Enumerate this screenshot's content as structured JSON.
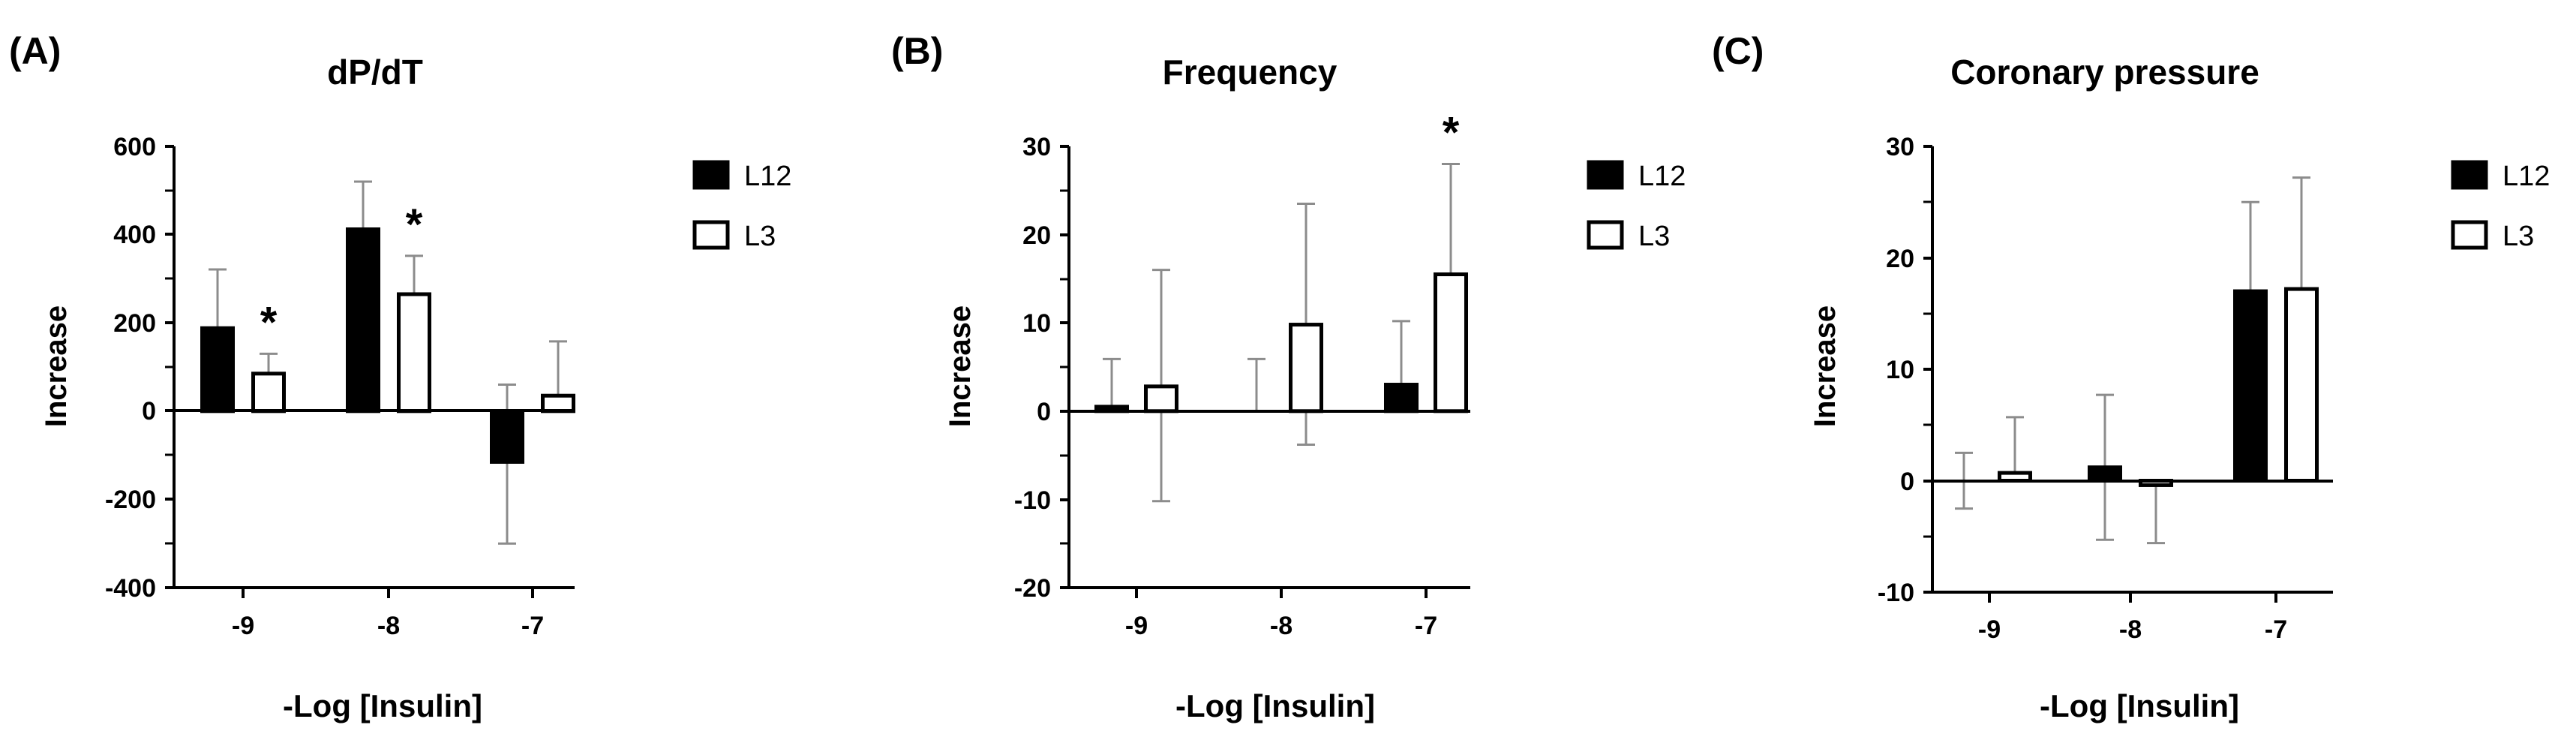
{
  "chart_data": [
    {
      "type": "bar",
      "panel_label": "(A)",
      "title": "dP/dT",
      "xlabel": "-Log [Insulin]",
      "ylabel": "Increase",
      "categories": [
        "-9",
        "-8",
        "-7"
      ],
      "ylim": [
        -400,
        600
      ],
      "yticks": [
        "600",
        "400",
        "200",
        "0",
        "-200",
        "-400"
      ],
      "grid": false,
      "legend_position": "top-right",
      "series": [
        {
          "name": "L12",
          "fill": "black",
          "values": [
            188,
            412,
            -115
          ],
          "err_plus": [
            133,
            108,
            175
          ],
          "err_minus": [
            0,
            0,
            185
          ]
        },
        {
          "name": "L3",
          "fill": "white",
          "values": [
            85,
            265,
            35
          ],
          "err_plus": [
            45,
            87,
            123
          ],
          "err_minus": [
            0,
            0,
            0
          ]
        }
      ],
      "annotations": [
        {
          "text": "*",
          "category": "-9",
          "series": "L3"
        },
        {
          "text": "*",
          "category": "-8",
          "series": "L3"
        }
      ]
    },
    {
      "type": "bar",
      "panel_label": "(B)",
      "title": "Frequency",
      "xlabel": "-Log [Insulin]",
      "ylabel": "Increase",
      "categories": [
        "-9",
        "-8",
        "-7"
      ],
      "ylim": [
        -20,
        30
      ],
      "yticks": [
        "30",
        "20",
        "10",
        "0",
        "-10",
        "-20"
      ],
      "grid": false,
      "legend_position": "top-right",
      "series": [
        {
          "name": "L12",
          "fill": "black",
          "values": [
            0.5,
            0,
            3
          ],
          "err_plus": [
            5.4,
            5.9,
            7.2
          ],
          "err_minus": [
            0,
            0,
            0
          ]
        },
        {
          "name": "L3",
          "fill": "white",
          "values": [
            2.8,
            9.8,
            15.5
          ],
          "err_plus": [
            13.2,
            13.7,
            12.5
          ],
          "err_minus": [
            13,
            13.6,
            12.3
          ]
        }
      ],
      "annotations": [
        {
          "text": "*",
          "category": "-7",
          "series": "L3"
        }
      ]
    },
    {
      "type": "bar",
      "panel_label": "(C)",
      "title": "Coronary pressure",
      "xlabel": "-Log [Insulin]",
      "ylabel": "Increase",
      "categories": [
        "-9",
        "-8",
        "-7"
      ],
      "ylim": [
        -10,
        30
      ],
      "yticks": [
        "30",
        "20",
        "10",
        "0",
        "-10"
      ],
      "grid": false,
      "legend_position": "top-right",
      "series": [
        {
          "name": "L12",
          "fill": "black",
          "values": [
            0,
            1.2,
            17
          ],
          "err_plus": [
            2.5,
            6.5,
            8
          ],
          "err_minus": [
            2.5,
            6.5,
            0
          ]
        },
        {
          "name": "L3",
          "fill": "white",
          "values": [
            0.7,
            -0.4,
            17.2
          ],
          "err_plus": [
            5,
            0,
            10
          ],
          "err_minus": [
            0,
            5.2,
            0
          ]
        }
      ],
      "annotations": []
    }
  ]
}
